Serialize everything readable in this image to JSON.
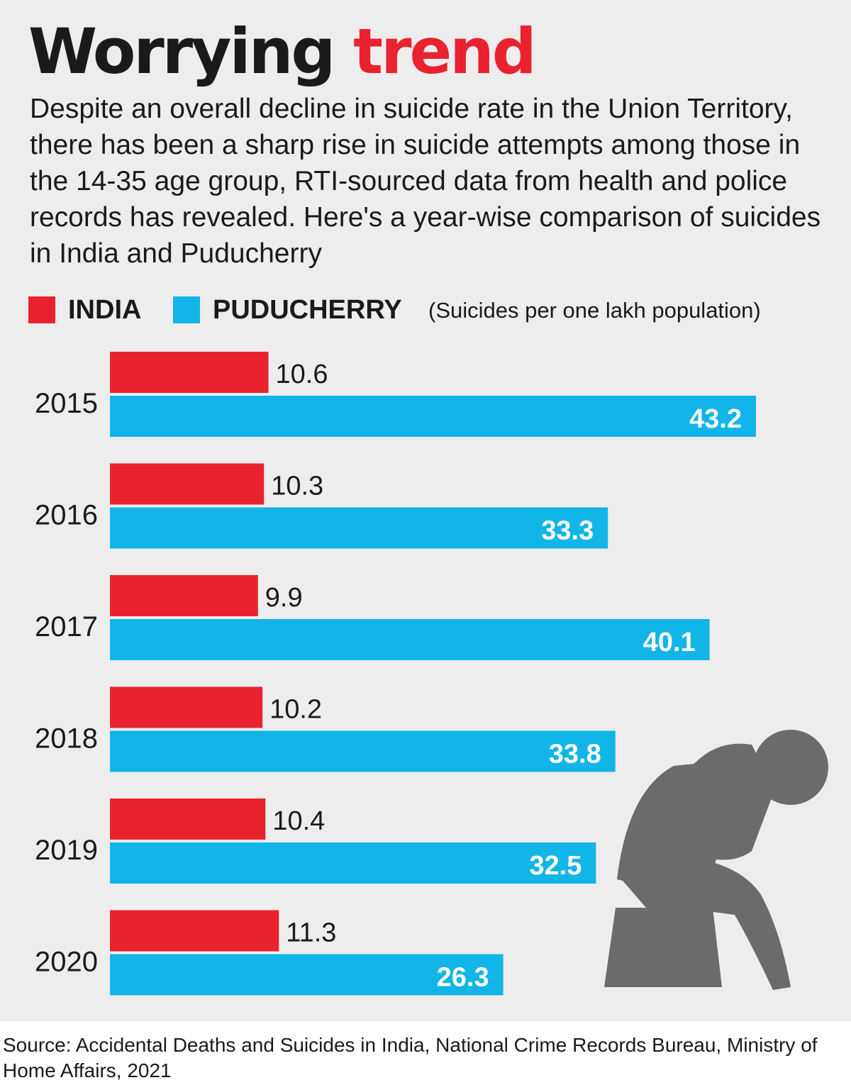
{
  "header": {
    "title_part1": "Worrying",
    "title_part2": "trend",
    "description": "Despite an overall decline in suicide rate in the Union Territory, there has been a sharp rise in suicide attempts among those in the 14-35 age group, RTI-sourced data from health and police records has revealed. Here's a year-wise comparison of suicides in India and Puducherry"
  },
  "legend": {
    "unit_note": "(Suicides per one lakh population)"
  },
  "colors": {
    "india": "#e8222e",
    "puducherry": "#12b5e8",
    "icon": "#6b6b6d"
  },
  "chart_data": {
    "type": "bar",
    "orientation": "horizontal",
    "categories": [
      "2015",
      "2016",
      "2017",
      "2018",
      "2019",
      "2020"
    ],
    "series": [
      {
        "name": "INDIA",
        "values": [
          10.6,
          10.3,
          9.9,
          10.2,
          10.4,
          11.3
        ]
      },
      {
        "name": "PUDUCHERRY",
        "values": [
          43.2,
          33.3,
          40.1,
          33.8,
          32.5,
          26.3
        ]
      }
    ],
    "title": "",
    "xlabel": "",
    "ylabel": "",
    "xlim": [
      0,
      43.2
    ],
    "grid": false,
    "legend_position": "top-left"
  },
  "footer": {
    "source": "Source: Accidental Deaths and Suicides in India, National Crime Records Bureau, Ministry of Home Affairs, 2021"
  },
  "icons": {
    "illustration": "sitting-person-head-in-hands-icon"
  }
}
